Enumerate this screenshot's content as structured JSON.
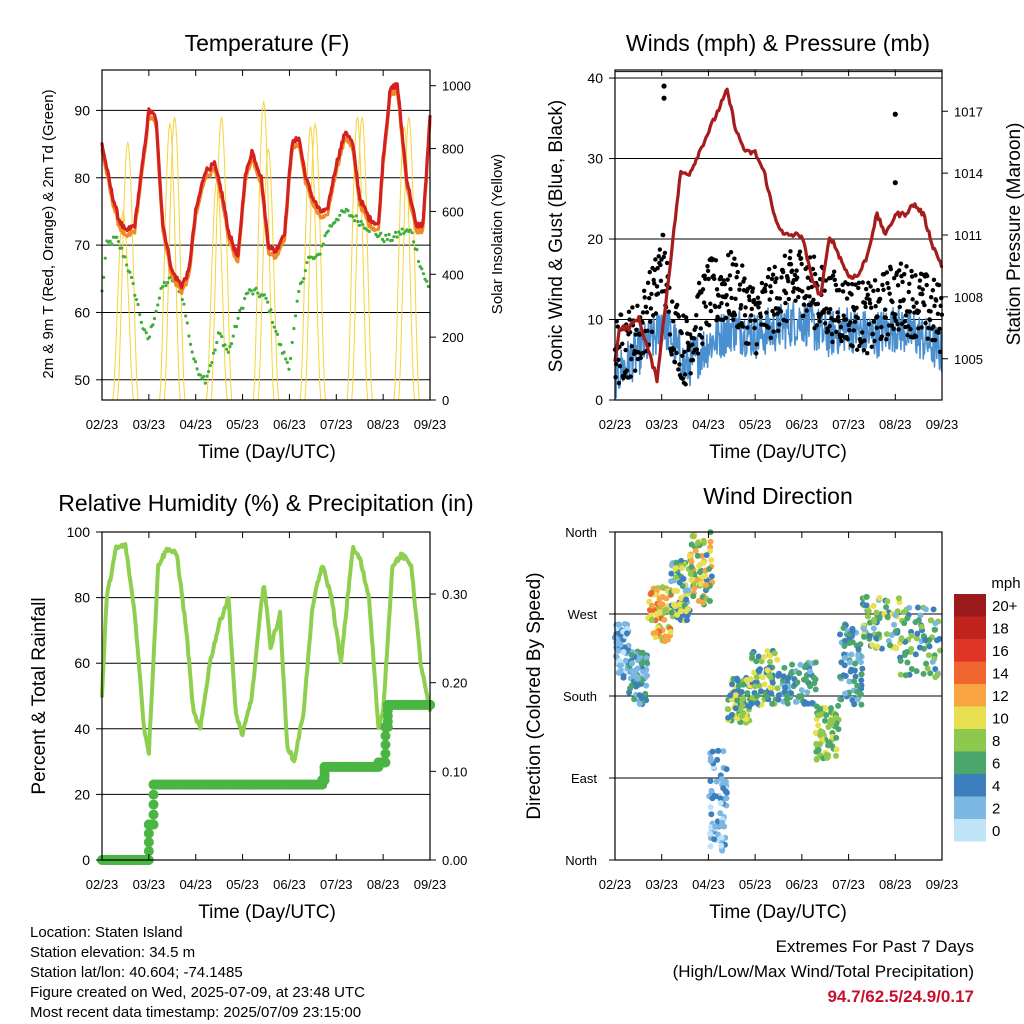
{
  "panels": {
    "temperature": {
      "title": "Temperature (F)",
      "ylabel_left": "2m & 9m T (Red, Orange) & 2m Td (Green)",
      "ylabel_right": "Solar Insolation (Yellow)",
      "xlabel": "Time (Day/UTC)"
    },
    "winds": {
      "title": "Winds (mph) & Pressure (mb)",
      "ylabel_left": "Sonic Wind & Gust (Blue, Black)",
      "ylabel_right": "Station Pressure (Maroon)",
      "xlabel": "Time (Day/UTC)"
    },
    "humidity": {
      "title": "Relative Humidity (%) & Precipitation (in)",
      "ylabel_left": "Percent & Total Rainfall",
      "xlabel": "Time (Day/UTC)"
    },
    "direction": {
      "title": "Wind Direction",
      "ylabel_left": "Direction (Colored By Speed)",
      "xlabel": "Time (Day/UTC)",
      "legend_title": "mph"
    }
  },
  "info": {
    "location": "Location: Staten Island",
    "elevation": "Station elevation: 34.5 m",
    "latlon": "Station lat/lon: 40.604; -74.1485",
    "created": "Figure created on Wed, 2025-07-09, at 23:48 UTC",
    "timestamp": "Most recent data timestamp: 2025/07/09 23:15:00"
  },
  "extremes": {
    "line1": "Extremes For Past 7 Days",
    "line2": "(High/Low/Max Wind/Total Precipitation)",
    "values": "94.7/62.5/24.9/0.17"
  },
  "colors": {
    "temp_red": "#d42020",
    "temp_orange": "#f08a24",
    "dewpoint_green": "#3fae3a",
    "solar_yellow": "#f5d43a",
    "wind_blue": "#4a90d0",
    "gust_black": "#000000",
    "pressure_maroon": "#a51c1c",
    "rh_green": "#8fcf50",
    "precip_green": "#4ab543"
  },
  "chart_data": [
    {
      "type": "line",
      "panel": "temperature",
      "x_ticks": [
        "02/23",
        "03/23",
        "04/23",
        "05/23",
        "06/23",
        "07/23",
        "08/23",
        "09/23"
      ],
      "ylim_left": [
        47,
        96
      ],
      "y_ticks_left": [
        50,
        60,
        70,
        80,
        90
      ],
      "ylim_right": [
        0,
        1050
      ],
      "y_ticks_right": [
        0,
        200,
        400,
        600,
        800,
        1000
      ],
      "series": [
        {
          "role": "temp_2m",
          "x": [
            0,
            0.2,
            0.35,
            0.5,
            0.7,
            0.9,
            1.0,
            1.15,
            1.3,
            1.5,
            1.7,
            1.85,
            2.0,
            2.2,
            2.4,
            2.55,
            2.7,
            2.9,
            3.05,
            3.2,
            3.4,
            3.55,
            3.7,
            3.9,
            4.05,
            4.2,
            4.35,
            4.5,
            4.65,
            4.8,
            5.0,
            5.2,
            5.35,
            5.5,
            5.7,
            5.9,
            6.0,
            6.15,
            6.3,
            6.5,
            6.7,
            6.85,
            7.0
          ],
          "y": [
            85,
            78,
            74,
            72,
            73,
            84,
            90,
            89,
            73,
            66,
            64,
            66,
            75,
            81,
            82,
            78,
            72,
            68,
            80,
            84,
            80,
            70,
            69,
            72,
            85,
            86,
            80,
            77,
            75,
            75,
            82,
            87,
            85,
            77,
            74,
            73,
            83,
            93,
            94,
            80,
            73,
            73,
            89
          ]
        },
        {
          "role": "dewpoint_2m",
          "x": [
            0,
            0.1,
            0.3,
            0.5,
            0.7,
            0.9,
            1.0,
            1.1,
            1.3,
            1.5,
            1.7,
            1.9,
            2.0,
            2.2,
            2.4,
            2.5,
            2.7,
            2.9,
            3.1,
            3.3,
            3.5,
            3.6,
            3.8,
            4.0,
            4.2,
            4.4,
            4.6,
            4.8,
            5.0,
            5.2,
            5.4,
            5.6,
            5.8,
            6.0,
            6.2,
            6.4,
            6.6,
            6.8,
            7.0
          ],
          "y": [
            63,
            70,
            71,
            68,
            63,
            57,
            56,
            59,
            64,
            65,
            63,
            55,
            52,
            50,
            54,
            57,
            54,
            59,
            63,
            63,
            62,
            60,
            55,
            52,
            63,
            68,
            68,
            72,
            74,
            75,
            74,
            73,
            72,
            71,
            71,
            72,
            72,
            67,
            63
          ]
        },
        {
          "role": "solar",
          "days": 7.0,
          "peaks": [
            600,
            820,
            880,
            900,
            700,
            900,
            950,
            800,
            870,
            880,
            900,
            900,
            870,
            900,
            850,
            880,
            930,
            950,
            980,
            1000,
            920,
            1000,
            980,
            990,
            1000,
            1000,
            950,
            960,
            1000,
            980,
            980,
            990,
            950,
            960,
            950,
            960,
            980,
            1000,
            990,
            970,
            990,
            980,
            1000
          ]
        }
      ]
    },
    {
      "type": "line",
      "panel": "winds",
      "x_ticks": [
        "02/23",
        "03/23",
        "04/23",
        "05/23",
        "06/23",
        "07/23",
        "08/23",
        "09/23"
      ],
      "ylim_left": [
        0,
        41
      ],
      "y_ticks_left": [
        0,
        10,
        20,
        30,
        40
      ],
      "ylim_right": [
        1003,
        1019
      ],
      "y_ticks_right": [
        1005,
        1008,
        1011,
        1014,
        1017
      ],
      "gust_outliers": [
        {
          "x": 1.05,
          "y": 39
        },
        {
          "x": 1.05,
          "y": 37.5
        },
        {
          "x": 6.0,
          "y": 35.5
        },
        {
          "x": 6.0,
          "y": 27
        }
      ],
      "series": [
        {
          "role": "pressure",
          "x": [
            0,
            0.1,
            0.3,
            0.5,
            0.7,
            0.9,
            1.0,
            1.2,
            1.4,
            1.6,
            1.8,
            2.0,
            2.2,
            2.4,
            2.6,
            2.8,
            3.0,
            3.2,
            3.4,
            3.6,
            3.8,
            4.0,
            4.2,
            4.4,
            4.6,
            4.8,
            5.0,
            5.2,
            5.4,
            5.6,
            5.8,
            6.0,
            6.2,
            6.4,
            6.6,
            6.8,
            7.0
          ],
          "y": [
            1005,
            1006.5,
            1006.5,
            1007,
            1005.5,
            1004,
            1006,
            1010,
            1014,
            1014,
            1015,
            1016,
            1017,
            1018,
            1016,
            1015,
            1015,
            1014,
            1012,
            1011,
            1011,
            1011,
            1009,
            1008,
            1011,
            1010,
            1009,
            1009,
            1010,
            1012,
            1011,
            1012,
            1012,
            1012.5,
            1012,
            1010.5,
            1009.5
          ]
        },
        {
          "role": "wind_mean",
          "x": [
            0,
            0.5,
            0.9,
            1.0,
            1.2,
            1.5,
            2.0,
            2.5,
            3.0,
            3.5,
            4.0,
            4.5,
            5.0,
            5.5,
            6.0,
            6.5,
            7.0
          ],
          "y": [
            3,
            6,
            8,
            10,
            8,
            4,
            7,
            9,
            8,
            9,
            10,
            8,
            9,
            8,
            9,
            8,
            6
          ]
        },
        {
          "role": "gust_mean",
          "x": [
            0,
            0.5,
            0.9,
            1.0,
            1.2,
            1.5,
            2.0,
            2.5,
            3.0,
            3.5,
            4.0,
            4.5,
            5.0,
            5.5,
            6.0,
            6.5,
            7.0
          ],
          "y": [
            6,
            8,
            14,
            18,
            10,
            6,
            13,
            14,
            10,
            13,
            15,
            12,
            11,
            10,
            13,
            12,
            10
          ]
        }
      ]
    },
    {
      "type": "line",
      "panel": "humidity",
      "x_ticks": [
        "02/23",
        "03/23",
        "04/23",
        "05/23",
        "06/23",
        "07/23",
        "08/23",
        "09/23"
      ],
      "ylim_left": [
        0,
        100
      ],
      "y_ticks_left": [
        0,
        20,
        40,
        60,
        80,
        100
      ],
      "ylim_right": [
        0,
        0.37
      ],
      "y_ticks_right": [
        "0.00",
        "0.10",
        "0.20",
        "0.30"
      ],
      "series": [
        {
          "role": "rh",
          "x": [
            0,
            0.1,
            0.3,
            0.5,
            0.7,
            0.9,
            1.0,
            1.2,
            1.4,
            1.6,
            1.8,
            1.95,
            2.1,
            2.3,
            2.5,
            2.7,
            2.85,
            3.0,
            3.2,
            3.45,
            3.6,
            3.8,
            3.95,
            4.1,
            4.3,
            4.5,
            4.7,
            4.9,
            5.1,
            5.35,
            5.5,
            5.7,
            5.9,
            6.0,
            6.2,
            6.4,
            6.6,
            6.8,
            7.0
          ],
          "y": [
            50,
            80,
            95,
            96,
            75,
            40,
            33,
            90,
            95,
            93,
            70,
            45,
            40,
            60,
            72,
            80,
            45,
            38,
            50,
            85,
            65,
            75,
            35,
            30,
            45,
            78,
            90,
            80,
            60,
            95,
            92,
            80,
            40,
            45,
            90,
            93,
            90,
            60,
            45
          ]
        },
        {
          "role": "precip",
          "steps": [
            {
              "x": 0,
              "y": 0
            },
            {
              "x": 1.0,
              "y": 0.04
            },
            {
              "x": 1.1,
              "y": 0.085
            },
            {
              "x": 4.7,
              "y": 0.09
            },
            {
              "x": 4.75,
              "y": 0.105
            },
            {
              "x": 5.9,
              "y": 0.11
            },
            {
              "x": 6.05,
              "y": 0.15
            },
            {
              "x": 6.1,
              "y": 0.175
            },
            {
              "x": 7.0,
              "y": 0.175
            }
          ]
        }
      ]
    },
    {
      "type": "scatter",
      "panel": "direction",
      "x_ticks": [
        "02/23",
        "03/23",
        "04/23",
        "05/23",
        "06/23",
        "07/23",
        "08/23",
        "09/23"
      ],
      "y_ticks": [
        "North",
        "West",
        "South",
        "East",
        "North"
      ],
      "ylim": [
        0,
        360
      ],
      "color_scale": [
        {
          "label": "20+",
          "color": "#9b1a1a"
        },
        {
          "label": "18",
          "color": "#c0221e"
        },
        {
          "label": "16",
          "color": "#de3526"
        },
        {
          "label": "14",
          "color": "#f0642e"
        },
        {
          "label": "12",
          "color": "#f8a442"
        },
        {
          "label": "10",
          "color": "#e8e052"
        },
        {
          "label": "8",
          "color": "#8fc84e"
        },
        {
          "label": "6",
          "color": "#4aa66a"
        },
        {
          "label": "4",
          "color": "#3d7fbd"
        },
        {
          "label": "2",
          "color": "#7cb7e3"
        },
        {
          "label": "0",
          "color": "#bfe3f7"
        }
      ],
      "clusters": [
        {
          "x": [
            0.0,
            0.3
          ],
          "dir": [
            200,
            260
          ],
          "speed": [
            1,
            5
          ]
        },
        {
          "x": [
            0.3,
            0.7
          ],
          "dir": [
            170,
            230
          ],
          "speed": [
            2,
            8
          ]
        },
        {
          "x": [
            0.7,
            1.2
          ],
          "dir": [
            240,
            300
          ],
          "speed": [
            8,
            16
          ]
        },
        {
          "x": [
            1.2,
            1.6
          ],
          "dir": [
            260,
            330
          ],
          "speed": [
            3,
            12
          ]
        },
        {
          "x": [
            1.6,
            2.1
          ],
          "dir": [
            280,
            360
          ],
          "speed": [
            5,
            14
          ]
        },
        {
          "x": [
            2.0,
            2.4
          ],
          "dir": [
            10,
            120
          ],
          "speed": [
            1,
            5
          ]
        },
        {
          "x": [
            2.4,
            2.9
          ],
          "dir": [
            150,
            200
          ],
          "speed": [
            4,
            12
          ]
        },
        {
          "x": [
            2.9,
            3.5
          ],
          "dir": [
            170,
            230
          ],
          "speed": [
            4,
            12
          ]
        },
        {
          "x": [
            3.5,
            4.3
          ],
          "dir": [
            170,
            220
          ],
          "speed": [
            3,
            8
          ]
        },
        {
          "x": [
            4.3,
            4.8
          ],
          "dir": [
            110,
            170
          ],
          "speed": [
            6,
            12
          ]
        },
        {
          "x": [
            4.8,
            5.3
          ],
          "dir": [
            170,
            260
          ],
          "speed": [
            2,
            8
          ]
        },
        {
          "x": [
            5.3,
            6.1
          ],
          "dir": [
            230,
            290
          ],
          "speed": [
            3,
            12
          ]
        },
        {
          "x": [
            6.1,
            7.0
          ],
          "dir": [
            200,
            280
          ],
          "speed": [
            3,
            10
          ]
        }
      ]
    }
  ]
}
